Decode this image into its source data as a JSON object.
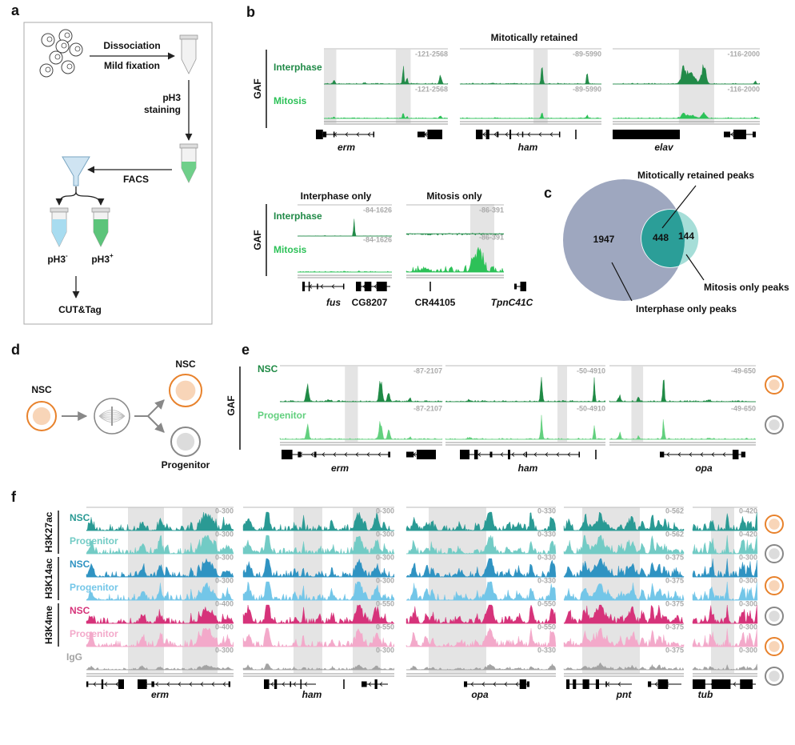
{
  "panel_a": {
    "label": "a",
    "dissociation": "Dissociation",
    "fixation": "Mild fixation",
    "staining": [
      "pH3",
      "staining"
    ],
    "facs": "FACS",
    "negative": {
      "base": "pH3",
      "sup": "-"
    },
    "positive": {
      "base": "pH3",
      "sup": "+"
    },
    "readout": "CUT&Tag"
  },
  "panel_b": {
    "label": "b",
    "y_label": "GAF",
    "row_labels": [
      "Interphase",
      "Mitosis"
    ],
    "groups": [
      {
        "title": "Mitotically retained",
        "loci": [
          {
            "genes": [
              "erm"
            ],
            "ranges": [
              "-121-2568",
              "-121-2568"
            ]
          },
          {
            "genes": [
              "ham"
            ],
            "ranges": [
              "-89-5990",
              "-89-5990"
            ]
          },
          {
            "genes": [
              "elav"
            ],
            "ranges": [
              "-116-2000",
              "-116-2000"
            ]
          }
        ]
      },
      {
        "title": "Interphase only",
        "loci": [
          {
            "genes": [
              "fus",
              "CG8207"
            ],
            "ranges": [
              "-84-1626",
              "-84-1626"
            ]
          }
        ]
      },
      {
        "title": "Mitosis only",
        "loci": [
          {
            "genes": [
              "CR44105",
              "TpnC41C"
            ],
            "ranges": [
              "-86-391",
              "-86-391"
            ]
          }
        ]
      }
    ]
  },
  "panel_c": {
    "label": "c",
    "counts": {
      "interphase_only": 1947,
      "retained": 448,
      "mitosis_only": 144
    },
    "labels": {
      "retained": "Mitotically retained peaks",
      "mitosis_only": "Mitosis only peaks",
      "interphase_only": "Interphase only peaks"
    }
  },
  "panel_d": {
    "label": "d",
    "parent": "NSC",
    "daughters": [
      "NSC",
      "Progenitor"
    ]
  },
  "panel_e": {
    "label": "e",
    "y_label": "GAF",
    "row_labels": [
      "NSC",
      "Progenitor"
    ],
    "loci": [
      {
        "gene": "erm",
        "ranges": [
          "-87-2107",
          "-87-2107"
        ]
      },
      {
        "gene": "ham",
        "ranges": [
          "-50-4910",
          "-50-4910"
        ]
      },
      {
        "gene": "opa",
        "ranges": [
          "-49-650",
          "-49-650"
        ]
      }
    ]
  },
  "panel_f": {
    "label": "f",
    "marks": [
      {
        "name": "H3K27ac",
        "rows": [
          "NSC",
          "Progenitor"
        ]
      },
      {
        "name": "H3K14ac",
        "rows": [
          "NSC",
          "Progenitor"
        ]
      },
      {
        "name": "H3K4me",
        "rows": [
          "NSC",
          "Progenitor"
        ]
      }
    ],
    "control": "IgG",
    "genes": [
      "erm",
      "ham",
      "opa",
      "pnt",
      "tub"
    ],
    "ranges": [
      [
        "0-300",
        "0-300",
        "0-330",
        "0-562",
        "0-420"
      ],
      [
        "0-300",
        "0-300",
        "0-330",
        "0-562",
        "0-420"
      ],
      [
        "0-300",
        "0-300",
        "0-330",
        "0-375",
        "0-300"
      ],
      [
        "0-300",
        "0-300",
        "0-330",
        "0-375",
        "0-300"
      ],
      [
        "0-400",
        "0-550",
        "0-550",
        "0-375",
        "0-300"
      ],
      [
        "0-400",
        "0-550",
        "0-550",
        "0-375",
        "0-300"
      ],
      [
        "0-300",
        "0-300",
        "0-330",
        "0-375",
        "0-300"
      ]
    ]
  }
}
